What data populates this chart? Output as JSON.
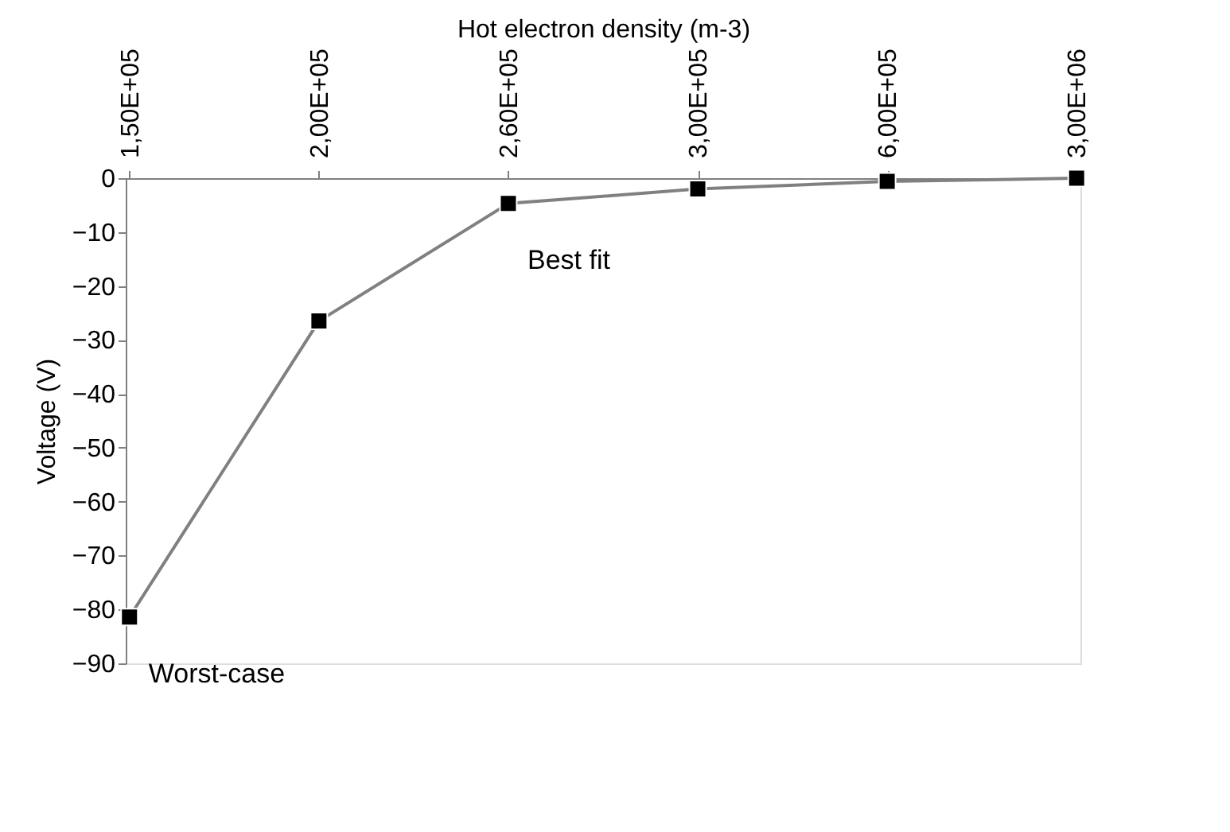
{
  "chart_data": {
    "type": "line",
    "xlabel": "Hot electron density (m-3)",
    "ylabel": "Voltage (V)",
    "categories": [
      "1,50E+05",
      "2,00E+05",
      "2,60E+05",
      "3,00E+05",
      "6,00E+05",
      "3,00E+06"
    ],
    "series": [
      {
        "color": "#808080",
        "values": [
          -81.4,
          -26.5,
          -4.7,
          -2.0,
          -0.6,
          0.0
        ]
      }
    ],
    "ylim": [
      -90,
      0
    ],
    "yticks": [
      0,
      -10,
      -20,
      -30,
      -40,
      -50,
      -60,
      -70,
      -80,
      -90
    ],
    "marker": "square",
    "grid": false,
    "annotations": [
      {
        "text": "Best fit",
        "x": "2,60E+05",
        "y": -4.7
      },
      {
        "text": "Worst-case",
        "x": "1,50E+05",
        "y": -81.4
      }
    ]
  }
}
